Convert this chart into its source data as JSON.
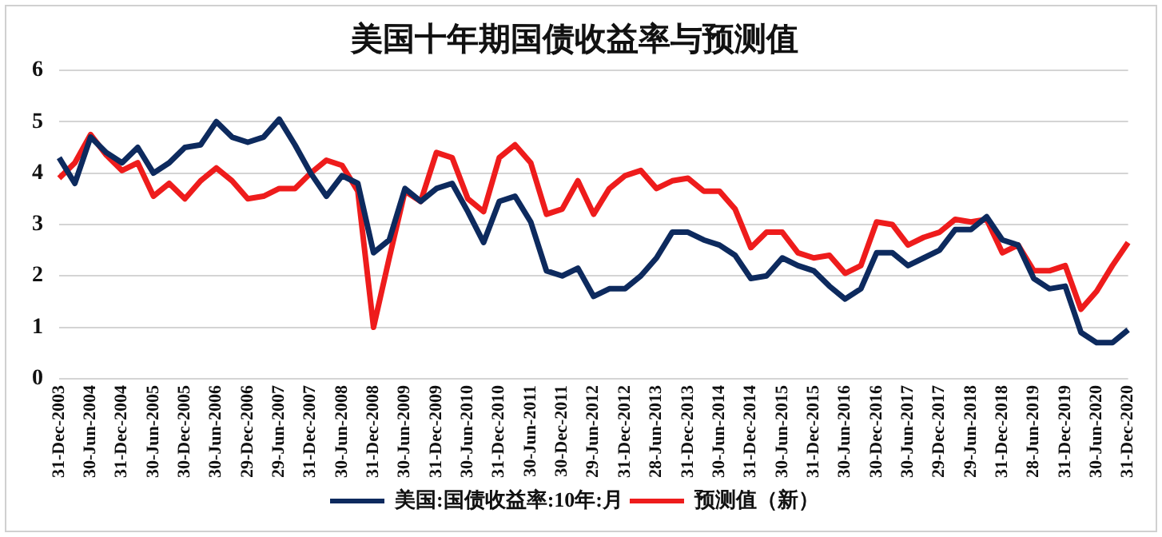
{
  "chart_data": {
    "type": "line",
    "title": "美国十年期国债收益率与预测值",
    "categories": [
      "31-Dec-2003",
      null,
      "30-Jun-2004",
      null,
      "31-Dec-2004",
      null,
      "30-Jun-2005",
      null,
      "30-Dec-2005",
      null,
      "30-Jun-2006",
      null,
      "29-Dec-2006",
      null,
      "29-Jun-2007",
      null,
      "31-Dec-2007",
      null,
      "30-Jun-2008",
      null,
      "31-Dec-2008",
      null,
      "30-Jun-2009",
      null,
      "31-Dec-2009",
      null,
      "30-Jun-2010",
      null,
      "31-Dec-2010",
      null,
      "30-Jun-2011",
      null,
      "30-Dec-2011",
      null,
      "29-Jun-2012",
      null,
      "31-Dec-2012",
      null,
      "28-Jun-2013",
      null,
      "31-Dec-2013",
      null,
      "30-Jun-2014",
      null,
      "31-Dec-2014",
      null,
      "30-Jun-2015",
      null,
      "31-Dec-2015",
      null,
      "30-Jun-2016",
      null,
      "30-Dec-2016",
      null,
      "30-Jun-2017",
      null,
      "29-Dec-2017",
      null,
      "29-Jun-2018",
      null,
      "31-Dec-2018",
      null,
      "28-Jun-2019",
      null,
      "31-Dec-2019",
      null,
      "30-Jun-2020",
      null,
      "31-Dec-2020"
    ],
    "series": [
      {
        "name": "美国:国债收益率:10年:月",
        "color": "#0d2a5e",
        "values": [
          4.3,
          3.8,
          4.7,
          4.4,
          4.2,
          4.5,
          4.0,
          4.2,
          4.5,
          4.55,
          5.0,
          4.7,
          4.6,
          4.7,
          5.05,
          4.55,
          4.0,
          3.55,
          3.95,
          3.8,
          2.45,
          2.7,
          3.7,
          3.45,
          3.7,
          3.8,
          3.25,
          2.65,
          3.45,
          3.55,
          3.05,
          2.1,
          2.0,
          2.15,
          1.6,
          1.75,
          1.75,
          2.0,
          2.35,
          2.85,
          2.85,
          2.7,
          2.6,
          2.4,
          1.95,
          2.0,
          2.35,
          2.2,
          2.1,
          1.8,
          1.55,
          1.75,
          2.45,
          2.45,
          2.2,
          2.35,
          2.5,
          2.9,
          2.9,
          3.15,
          2.7,
          2.6,
          1.95,
          1.75,
          1.8,
          0.9,
          0.7,
          0.7,
          0.95
        ]
      },
      {
        "name": "预测值（新）",
        "color": "#ee1c1c",
        "values": [
          3.9,
          4.2,
          4.75,
          4.35,
          4.05,
          4.2,
          3.55,
          3.8,
          3.5,
          3.85,
          4.1,
          3.85,
          3.5,
          3.55,
          3.7,
          3.7,
          4.0,
          4.25,
          4.15,
          3.65,
          1.0,
          2.35,
          3.65,
          3.45,
          4.4,
          4.3,
          3.5,
          3.25,
          4.3,
          4.55,
          4.2,
          3.2,
          3.3,
          3.85,
          3.2,
          3.7,
          3.95,
          4.05,
          3.7,
          3.85,
          3.9,
          3.65,
          3.65,
          3.3,
          2.55,
          2.85,
          2.85,
          2.45,
          2.35,
          2.4,
          2.05,
          2.2,
          3.05,
          3.0,
          2.6,
          2.75,
          2.85,
          3.1,
          3.05,
          3.1,
          2.45,
          2.6,
          2.1,
          2.1,
          2.2,
          1.35,
          1.7,
          2.2,
          2.65
        ]
      }
    ],
    "ylim": [
      0,
      6
    ],
    "yticks": [
      0,
      1,
      2,
      3,
      4,
      5,
      6
    ],
    "grid": "y",
    "legend": "bottom",
    "marker": "none",
    "line_style": "solid"
  }
}
